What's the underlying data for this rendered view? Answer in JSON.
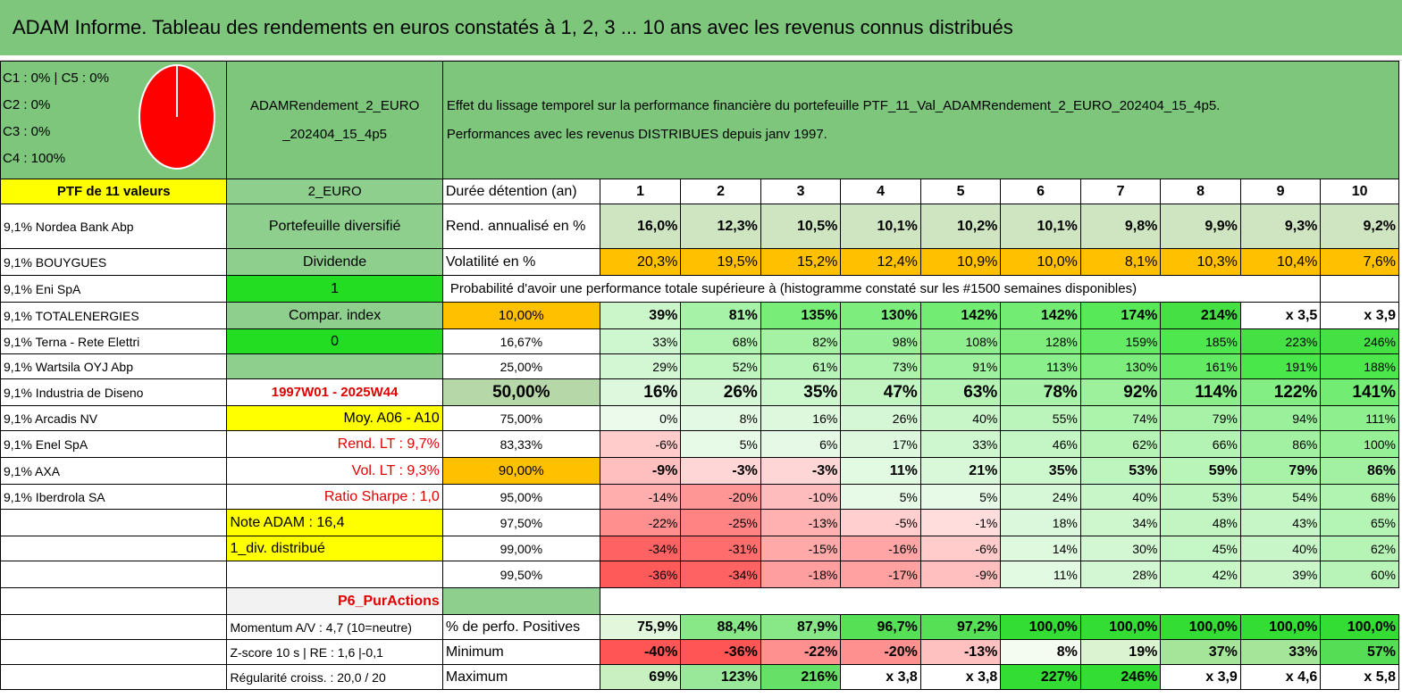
{
  "title": "ADAM Informe. Tableau des rendements en euros constatés à 1, 2, 3 ... 10 ans avec les revenus connus distribués",
  "allocation": {
    "line1": "C1 : 0% | C5 : 0%",
    "line2": "C2 : 0%",
    "line3": "C3 : 0%",
    "line4": "C4 : 100%"
  },
  "portfolio_name_line1": "ADAMRendement_2_EURO",
  "portfolio_name_line2": "_202404_15_4p5",
  "description_line1": "Effet du lissage temporel sur la performance financière du portefeuille PTF_11_Val_ADAMRendement_2_EURO_202404_15_4p5.",
  "description_line2": "Performances avec les revenus DISTRIBUES depuis janv 1997.",
  "ptf_label": "PTF de 11 valeurs",
  "currency": "2_EURO",
  "holdings": [
    "9,1% Nordea Bank Abp",
    "9,1% BOUYGUES",
    "9,1% Eni SpA",
    "9,1% TOTALENERGIES",
    "9,1% Terna - Rete Elettri",
    "9,1% Wartsila OYJ Abp",
    "9,1% Industria de Diseno",
    "9,1% Arcadis NV",
    "9,1% Enel SpA",
    "9,1% AXA",
    "9,1% Iberdrola SA"
  ],
  "info": {
    "diversified": "Portefeuille diversifié",
    "dividend": "Dividende",
    "one": "1",
    "compar": "Compar. index",
    "zero": "0",
    "empty": "",
    "period": "1997W01 - 2025W44",
    "moy": "Moy. A06 - A10",
    "rend_lt": "Rend. LT : 9,7%",
    "vol_lt": "Vol. LT : 9,3%",
    "sharpe": "Ratio Sharpe : 1,0",
    "note": "Note ADAM : 16,4",
    "div": "1_div. distribué",
    "p6": "P6_PurActions",
    "momentum": "Momentum A/V : 4,7 (10=neutre)",
    "zscore": "Z-score 10 s | RE : 1,6 |-0,1",
    "regularity": "Régularité croiss. : 20,0 / 20"
  },
  "table": {
    "duration_label": "Durée détention (an)",
    "years": [
      "1",
      "2",
      "3",
      "4",
      "5",
      "6",
      "7",
      "8",
      "9",
      "10"
    ],
    "rend_label": "Rend. annualisé en %",
    "rend": [
      "16,0%",
      "12,3%",
      "10,5%",
      "10,1%",
      "10,2%",
      "10,1%",
      "9,8%",
      "9,9%",
      "9,3%",
      "9,2%"
    ],
    "vol_label": "Volatilité en %",
    "vol": [
      "20,3%",
      "19,5%",
      "15,2%",
      "12,4%",
      "10,9%",
      "10,0%",
      "8,1%",
      "10,3%",
      "10,4%",
      "7,6%"
    ],
    "prob_caption": "Probabilité d'avoir une performance totale supérieure à (histogramme constaté sur les #1500 semaines disponibles)",
    "prob_rows": [
      {
        "p": "10,00%",
        "v": [
          "39%",
          "81%",
          "135%",
          "130%",
          "142%",
          "142%",
          "174%",
          "214%",
          "x 3,5",
          "x 3,9"
        ]
      },
      {
        "p": "16,67%",
        "v": [
          "33%",
          "68%",
          "82%",
          "98%",
          "108%",
          "128%",
          "159%",
          "185%",
          "223%",
          "246%"
        ]
      },
      {
        "p": "25,00%",
        "v": [
          "29%",
          "52%",
          "61%",
          "73%",
          "91%",
          "113%",
          "130%",
          "161%",
          "191%",
          "188%"
        ]
      },
      {
        "p": "50,00%",
        "v": [
          "16%",
          "26%",
          "35%",
          "47%",
          "63%",
          "78%",
          "92%",
          "114%",
          "122%",
          "141%"
        ]
      },
      {
        "p": "75,00%",
        "v": [
          "0%",
          "8%",
          "16%",
          "26%",
          "40%",
          "55%",
          "74%",
          "79%",
          "94%",
          "111%"
        ]
      },
      {
        "p": "83,33%",
        "v": [
          "-6%",
          "5%",
          "6%",
          "17%",
          "33%",
          "46%",
          "62%",
          "66%",
          "86%",
          "100%"
        ]
      },
      {
        "p": "90,00%",
        "v": [
          "-9%",
          "-3%",
          "-3%",
          "11%",
          "21%",
          "35%",
          "53%",
          "59%",
          "79%",
          "86%"
        ]
      },
      {
        "p": "95,00%",
        "v": [
          "-14%",
          "-20%",
          "-10%",
          "5%",
          "5%",
          "24%",
          "40%",
          "53%",
          "54%",
          "68%"
        ]
      },
      {
        "p": "97,50%",
        "v": [
          "-22%",
          "-25%",
          "-13%",
          "-5%",
          "-1%",
          "18%",
          "34%",
          "48%",
          "43%",
          "65%"
        ]
      },
      {
        "p": "99,00%",
        "v": [
          "-34%",
          "-31%",
          "-15%",
          "-16%",
          "-6%",
          "14%",
          "30%",
          "45%",
          "40%",
          "62%"
        ]
      },
      {
        "p": "99,50%",
        "v": [
          "-36%",
          "-34%",
          "-18%",
          "-17%",
          "-9%",
          "11%",
          "28%",
          "42%",
          "39%",
          "60%"
        ]
      }
    ],
    "pos_label": "% de perfo. Positives",
    "pos": [
      "75,9%",
      "88,4%",
      "87,9%",
      "96,7%",
      "97,2%",
      "100,0%",
      "100,0%",
      "100,0%",
      "100,0%",
      "100,0%"
    ],
    "min_label": "Minimum",
    "min": [
      "-40%",
      "-36%",
      "-22%",
      "-20%",
      "-13%",
      "8%",
      "19%",
      "37%",
      "33%",
      "57%"
    ],
    "max_label": "Maximum",
    "max": [
      "69%",
      "123%",
      "216%",
      "x 3,8",
      "x 3,8",
      "227%",
      "246%",
      "x 3,9",
      "x 4,6",
      "x 5,8"
    ]
  },
  "colors": {
    "header_green": "#7dc67c",
    "yellow": "#ffff00",
    "orange": "#ffc000",
    "bright_green": "#22dd22",
    "pie_red": "#ff0000"
  }
}
